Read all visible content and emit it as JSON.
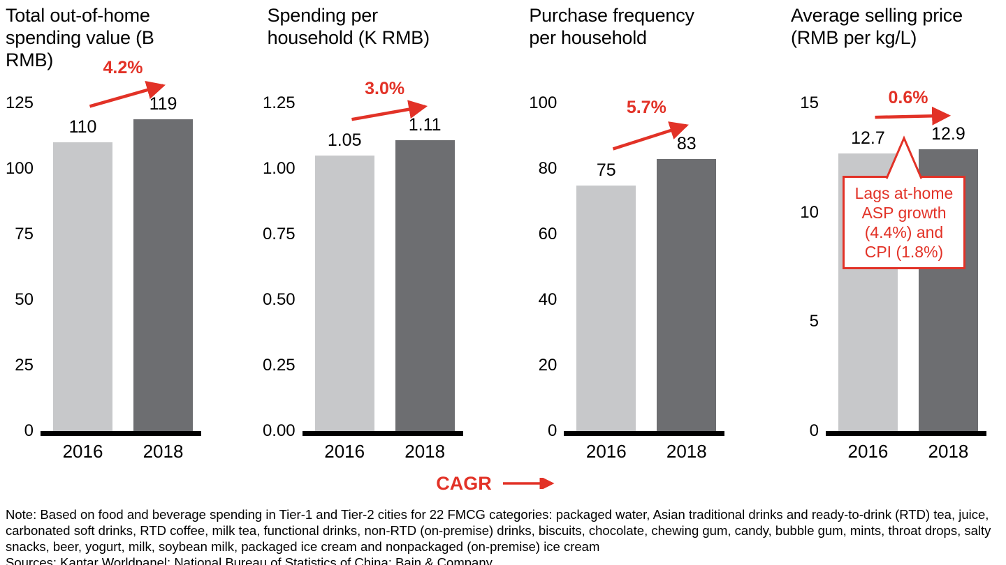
{
  "colors": {
    "bar_2016": "#c7c8ca",
    "bar_2018": "#6d6e71",
    "accent_red": "#e23227",
    "axis_black": "#000000"
  },
  "legend": {
    "cagr_label": "CAGR"
  },
  "footer": {
    "note": "Note: Based on food and beverage spending in Tier-1 and Tier-2 cities for 22 FMCG categories: packaged water, Asian traditional drinks and ready-to-drink (RTD) tea, juice, carbonated soft drinks, RTD coffee, milk tea, functional drinks, non-RTD (on-premise) drinks, biscuits, chocolate, chewing gum, candy, bubble gum, mints, throat drops, salty snacks, beer, yogurt, milk, soybean milk, packaged ice cream and nonpackaged (on-premise) ice cream",
    "sources": "Sources: Kantar Worldpanel; National Bureau of Statistics of China; Bain & Company"
  },
  "chart_data": [
    {
      "type": "bar",
      "title": "Total out-of-home\nspending value (B RMB)",
      "categories": [
        "2016",
        "2018"
      ],
      "values": [
        110,
        119
      ],
      "value_labels": [
        "110",
        "119"
      ],
      "cagr": "4.2%",
      "ylim": [
        0,
        125
      ],
      "yticks": [
        "0",
        "25",
        "50",
        "75",
        "100",
        "125"
      ],
      "ytick_values": [
        0,
        25,
        50,
        75,
        100,
        125
      ],
      "grid": false,
      "legend_position": "none"
    },
    {
      "type": "bar",
      "title": "Spending per\nhousehold (K RMB)",
      "categories": [
        "2016",
        "2018"
      ],
      "values": [
        1.05,
        1.11
      ],
      "value_labels": [
        "1.05",
        "1.11"
      ],
      "cagr": "3.0%",
      "ylim": [
        0,
        1.25
      ],
      "yticks": [
        "0.00",
        "0.25",
        "0.50",
        "0.75",
        "1.00",
        "1.25"
      ],
      "ytick_values": [
        0,
        0.25,
        0.5,
        0.75,
        1.0,
        1.25
      ],
      "grid": false,
      "legend_position": "none"
    },
    {
      "type": "bar",
      "title": "Purchase frequency\nper household",
      "categories": [
        "2016",
        "2018"
      ],
      "values": [
        75,
        83
      ],
      "value_labels": [
        "75",
        "83"
      ],
      "cagr": "5.7%",
      "ylim": [
        0,
        100
      ],
      "yticks": [
        "0",
        "20",
        "40",
        "60",
        "80",
        "100"
      ],
      "ytick_values": [
        0,
        20,
        40,
        60,
        80,
        100
      ],
      "grid": false,
      "legend_position": "none"
    },
    {
      "type": "bar",
      "title": "Average selling price\n(RMB per kg/L)",
      "categories": [
        "2016",
        "2018"
      ],
      "values": [
        12.7,
        12.9
      ],
      "value_labels": [
        "12.7",
        "12.9"
      ],
      "cagr": "0.6%",
      "ylim": [
        0,
        15
      ],
      "yticks": [
        "0",
        "5",
        "10",
        "15"
      ],
      "ytick_values": [
        0,
        5,
        10,
        15
      ],
      "grid": false,
      "legend_position": "none",
      "callout": "Lags at-home\nASP growth\n(4.4%) and\nCPI (1.8%)"
    }
  ]
}
